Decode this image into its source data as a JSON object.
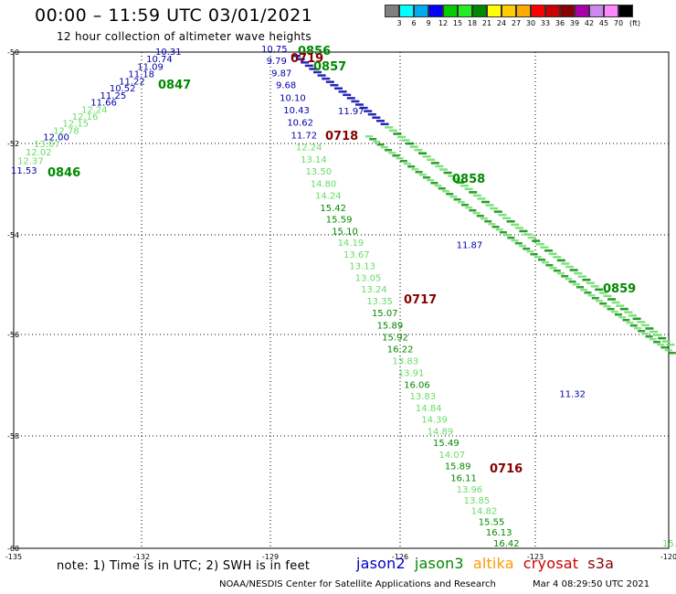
{
  "title": "00:00 – 11:59 UTC 03/01/2021",
  "subtitle": "12 hour collection of altimeter wave heights",
  "colorbar": {
    "colors": [
      "#808080",
      "#00ffff",
      "#00aaee",
      "#0000ff",
      "#00cc00",
      "#22ee22",
      "#008800",
      "#ffff00",
      "#ffcc00",
      "#ffaa00",
      "#ff0000",
      "#cc0000",
      "#880000",
      "#aa00aa",
      "#cc88ee",
      "#ff88ff",
      "#000000"
    ],
    "ticks": [
      "3",
      "6",
      "9",
      "12",
      "15",
      "18",
      "21",
      "24",
      "27",
      "30",
      "33",
      "36",
      "39",
      "42",
      "45",
      "70"
    ],
    "unit": "(ft)"
  },
  "map_axes": {
    "lat_labels": [
      "-50",
      "-52",
      "-54",
      "-56",
      "-58",
      "-60"
    ],
    "lon_labels": [
      "-135",
      "-132",
      "-129",
      "-126",
      "-123",
      "-120"
    ]
  },
  "note": "note: 1) Time is in UTC; 2) SWH is in feet",
  "legend": [
    {
      "name": "jason2",
      "color": "#0000cc"
    },
    {
      "name": "jason3",
      "color": "#008800"
    },
    {
      "name": "altika",
      "color": "#ff9900"
    },
    {
      "name": "cryosat",
      "color": "#cc0000"
    },
    {
      "name": "s3a",
      "color": "#880000"
    }
  ],
  "credit": "NOAA/NESDIS Center for Satellite Applications and Research",
  "timestamp": "Mar  4 08:29:50 UTC 2021",
  "track_times": [
    {
      "text": "0846",
      "color": "#008800"
    },
    {
      "text": "0847",
      "color": "#008800"
    },
    {
      "text": "0718",
      "color": "#880000"
    },
    {
      "text": "0717",
      "color": "#880000"
    },
    {
      "text": "0716",
      "color": "#880000"
    },
    {
      "text": "0858",
      "color": "#008800"
    },
    {
      "text": "0859",
      "color": "#008800"
    },
    {
      "text": "0856",
      "color": "#008800"
    },
    {
      "text": "0857",
      "color": "#008800"
    },
    {
      "text": "0719",
      "color": "#880000"
    }
  ],
  "tracks": [
    {
      "name": "left-track",
      "labels": [
        {
          "text": "11.53",
          "color": "#0000aa"
        },
        {
          "text": "12.37",
          "color": "#66dd66"
        },
        {
          "text": "12.02",
          "color": "#66dd66"
        },
        {
          "text": "13.07",
          "color": "#66dd66"
        },
        {
          "text": "12.00",
          "color": "#0000aa"
        },
        {
          "text": "12.78",
          "color": "#66dd66"
        },
        {
          "text": "12.15",
          "color": "#66dd66"
        },
        {
          "text": "12.16",
          "color": "#66dd66"
        },
        {
          "text": "12.24",
          "color": "#66dd66"
        },
        {
          "text": "11.66",
          "color": "#0000aa"
        },
        {
          "text": "11.25",
          "color": "#0000aa"
        },
        {
          "text": "10.52",
          "color": "#0000aa"
        },
        {
          "text": "11.22",
          "color": "#0000aa"
        },
        {
          "text": "11.18",
          "color": "#0000aa"
        },
        {
          "text": "11.09",
          "color": "#0000aa"
        },
        {
          "text": "10.74",
          "color": "#0000aa"
        },
        {
          "text": "10.31",
          "color": "#0000aa"
        }
      ]
    },
    {
      "name": "middle-track",
      "labels": [
        {
          "text": "10.75",
          "color": "#0000aa"
        },
        {
          "text": "9.79",
          "color": "#0000aa"
        },
        {
          "text": "9.87",
          "color": "#0000aa"
        },
        {
          "text": "9.68",
          "color": "#0000aa"
        },
        {
          "text": "10.10",
          "color": "#0000aa"
        },
        {
          "text": "10.43",
          "color": "#0000aa"
        },
        {
          "text": "10.62",
          "color": "#0000aa"
        },
        {
          "text": "11.72",
          "color": "#0000aa"
        },
        {
          "text": "12.24",
          "color": "#66dd66"
        },
        {
          "text": "13.14",
          "color": "#66dd66"
        },
        {
          "text": "13.50",
          "color": "#66dd66"
        },
        {
          "text": "14.80",
          "color": "#66dd66"
        },
        {
          "text": "14.24",
          "color": "#66dd66"
        },
        {
          "text": "15.42",
          "color": "#008800"
        },
        {
          "text": "15.59",
          "color": "#008800"
        },
        {
          "text": "15.10",
          "color": "#008800"
        },
        {
          "text": "14.19",
          "color": "#66dd66"
        },
        {
          "text": "13.67",
          "color": "#66dd66"
        },
        {
          "text": "13.13",
          "color": "#66dd66"
        },
        {
          "text": "13.05",
          "color": "#66dd66"
        },
        {
          "text": "13.24",
          "color": "#66dd66"
        },
        {
          "text": "13.35",
          "color": "#66dd66"
        },
        {
          "text": "15.07",
          "color": "#008800"
        },
        {
          "text": "15.89",
          "color": "#008800"
        },
        {
          "text": "15.92",
          "color": "#008800"
        },
        {
          "text": "16.22",
          "color": "#008800"
        },
        {
          "text": "13.83",
          "color": "#66dd66"
        },
        {
          "text": "13.91",
          "color": "#66dd66"
        },
        {
          "text": "16.06",
          "color": "#008800"
        },
        {
          "text": "13.83",
          "color": "#66dd66"
        },
        {
          "text": "14.84",
          "color": "#66dd66"
        },
        {
          "text": "14.39",
          "color": "#66dd66"
        },
        {
          "text": "14.89",
          "color": "#66dd66"
        },
        {
          "text": "15.49",
          "color": "#008800"
        },
        {
          "text": "14.07",
          "color": "#66dd66"
        },
        {
          "text": "15.89",
          "color": "#008800"
        },
        {
          "text": "16.11",
          "color": "#008800"
        },
        {
          "text": "13.96",
          "color": "#66dd66"
        },
        {
          "text": "13.85",
          "color": "#66dd66"
        },
        {
          "text": "14.82",
          "color": "#66dd66"
        },
        {
          "text": "15.55",
          "color": "#008800"
        },
        {
          "text": "16.13",
          "color": "#008800"
        },
        {
          "text": "16.42",
          "color": "#008800"
        }
      ]
    },
    {
      "name": "right-track",
      "labels": [
        {
          "text": "11.97",
          "color": "#0000aa"
        },
        {
          "text": "11.87",
          "color": "#0000aa"
        },
        {
          "text": "11.32",
          "color": "#0000aa"
        },
        {
          "text": "15.",
          "color": "#66dd66"
        }
      ]
    }
  ]
}
